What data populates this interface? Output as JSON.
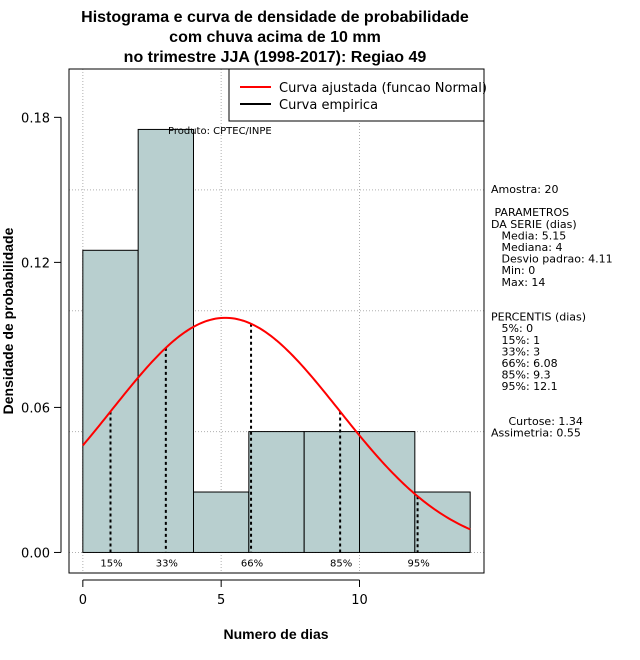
{
  "chart_data": {
    "type": "bar",
    "title": [
      "Histograma e curva de densidade de probabilidade",
      "com chuva acima de 10 mm",
      "no trimestre JJA (1998-2017): Regiao 49"
    ],
    "xlabel": "Numero de dias",
    "ylabel": "Densidade de probabilidade",
    "xlim": [
      -0.5,
      14.5
    ],
    "ylim": [
      -0.0085,
      0.2
    ],
    "xticks": [
      0,
      5,
      10
    ],
    "yticks": [
      0.0,
      0.06,
      0.12,
      0.18
    ],
    "ytick_labels": [
      "0.00",
      "0.06",
      "0.12",
      "0.18"
    ],
    "xgrid": [
      0,
      5,
      10
    ],
    "ygrid": [
      0.0,
      0.05,
      0.1,
      0.15,
      0.2
    ],
    "bins": [
      {
        "x0": 0,
        "x1": 2,
        "value": 0.125
      },
      {
        "x0": 2,
        "x1": 4,
        "value": 0.175
      },
      {
        "x0": 4,
        "x1": 6,
        "value": 0.025
      },
      {
        "x0": 6,
        "x1": 8,
        "value": 0.05
      },
      {
        "x0": 8,
        "x1": 10,
        "value": 0.05
      },
      {
        "x0": 10,
        "x1": 12,
        "value": 0.05
      },
      {
        "x0": 12,
        "x1": 14,
        "value": 0.025
      }
    ],
    "bar_color": "#b8cfcf",
    "normal_curve": {
      "mean": 5.15,
      "sd": 4.11,
      "x_from": 0,
      "x_to": 14,
      "color": "#ff0000"
    },
    "percentile_lines": [
      {
        "label": "15%",
        "x": 1
      },
      {
        "label": "33%",
        "x": 3
      },
      {
        "label": "66%",
        "x": 6.08
      },
      {
        "label": "85%",
        "x": 9.3
      },
      {
        "label": "95%",
        "x": 12.1
      }
    ],
    "legend": {
      "placement": "top-right",
      "entries": [
        {
          "label": "Curva ajustada (funcao Normal)",
          "color": "#ff0000"
        },
        {
          "label": "Curva empirica",
          "color": "#000000"
        }
      ]
    },
    "annotation": "Produto: CPTEC/INPE",
    "side_panel": [
      "Amostra: 20",
      "",
      " PARAMETROS",
      "DA SERIE (dias)",
      "   Media: 5.15",
      "   Mediana: 4",
      "   Desvio padrao: 4.11",
      "   Min: 0",
      "   Max: 14",
      "",
      "",
      "PERCENTIS (dias)",
      "   5%: 0",
      "   15%: 1",
      "   33%: 3",
      "   66%: 6.08",
      "   85%: 9.3",
      "   95%: 12.1",
      "",
      "",
      "     Curtose: 1.34",
      "Assimetria: 0.55"
    ]
  }
}
